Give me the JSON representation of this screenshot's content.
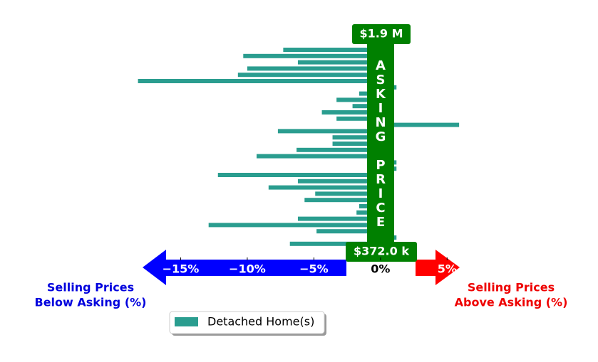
{
  "chart_data": {
    "type": "barh",
    "values": [
      -7.3,
      -10.3,
      -6.2,
      -10.0,
      -10.7,
      -18.2,
      1.2,
      -1.6,
      -3.3,
      -2.1,
      -4.4,
      -3.3,
      5.9,
      -7.7,
      -3.6,
      -3.6,
      -6.3,
      -9.3,
      1.2,
      1.2,
      -12.2,
      -6.2,
      -8.4,
      -4.9,
      -5.7,
      -1.6,
      -1.8,
      -6.2,
      -12.9,
      -4.8,
      1.2,
      -6.8
    ],
    "color": "#2a9d8f",
    "series_name": "Detached Home(s)",
    "xlim": [
      -18.5,
      6.0
    ],
    "xticks": [
      {
        "value": -15,
        "label": "−15%"
      },
      {
        "value": -10,
        "label": "−10%"
      },
      {
        "value": -5,
        "label": "−5%"
      },
      {
        "value": 0,
        "label": "0%"
      },
      {
        "value": 5,
        "label": "5%"
      }
    ],
    "max_price_label": "$1.9 M",
    "min_price_label": "$372.0 k",
    "asking_label": "ASKING PRICE",
    "left_label": [
      "Selling Prices",
      "Below Asking (%)"
    ],
    "right_label": [
      "Selling Prices",
      "Above Asking (%)"
    ]
  }
}
